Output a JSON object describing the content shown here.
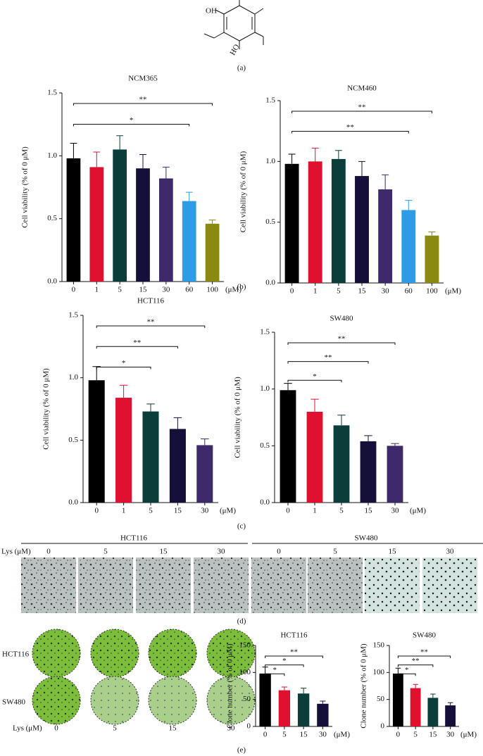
{
  "chart_data": [
    {
      "type": "bar",
      "title": "NCM365",
      "ylabel": "Cell viability (% of 0 μM)",
      "x_unit": "(μM)",
      "categories": [
        "0",
        "1",
        "5",
        "15",
        "30",
        "60",
        "100"
      ],
      "values": [
        0.98,
        0.91,
        1.05,
        0.9,
        0.82,
        0.64,
        0.46
      ],
      "errors": [
        0.12,
        0.12,
        0.11,
        0.11,
        0.09,
        0.07,
        0.03
      ],
      "colors": [
        "#000000",
        "#e0102f",
        "#0b3d3a",
        "#14103a",
        "#3e2a6b",
        "#2e9be6",
        "#8a8a12"
      ],
      "ylim": [
        0,
        1.5
      ],
      "yticks": [
        {
          "value": 0,
          "label": "0.0"
        },
        0.5,
        {
          "value": 1,
          "label": "1.0"
        },
        1.5
      ],
      "brackets": [
        {
          "label": "*",
          "from": "0",
          "to": "60"
        },
        {
          "label": "**",
          "from": "0",
          "to": "100"
        }
      ]
    },
    {
      "type": "bar",
      "title": "NCM460",
      "ylabel": "Cell viability (% of 0 μM)",
      "x_unit": "(μM)",
      "categories": [
        "0",
        "1",
        "5",
        "15",
        "30",
        "60",
        "100"
      ],
      "values": [
        0.98,
        1.0,
        1.02,
        0.88,
        0.77,
        0.6,
        0.39
      ],
      "errors": [
        0.08,
        0.11,
        0.07,
        0.12,
        0.12,
        0.08,
        0.03
      ],
      "colors": [
        "#000000",
        "#e0102f",
        "#0b3d3a",
        "#14103a",
        "#3e2a6b",
        "#2e9be6",
        "#8a8a12"
      ],
      "ylim": [
        0,
        1.5
      ],
      "yticks": [
        {
          "value": 0,
          "label": "0.0"
        },
        0.5,
        {
          "value": 1,
          "label": "1.0"
        },
        1.5
      ],
      "brackets": [
        {
          "label": "**",
          "from": "0",
          "to": "60"
        },
        {
          "label": "**",
          "from": "0",
          "to": "100"
        }
      ]
    },
    {
      "type": "bar",
      "title": "HCT116",
      "ylabel": "Cell viability (% of 0 μM)",
      "x_unit": "(μM)",
      "categories": [
        "0",
        "1",
        "5",
        "15",
        "30"
      ],
      "values": [
        0.98,
        0.84,
        0.73,
        0.59,
        0.46
      ],
      "errors": [
        0.11,
        0.1,
        0.06,
        0.09,
        0.05
      ],
      "colors": [
        "#000000",
        "#e0102f",
        "#0b3d3a",
        "#14103a",
        "#3e2a6b"
      ],
      "ylim": [
        0,
        1.5
      ],
      "yticks": [
        {
          "value": 0,
          "label": "0.0"
        },
        0.5,
        {
          "value": 1,
          "label": "1.0"
        },
        1.5
      ],
      "brackets": [
        {
          "label": "*",
          "from": "0",
          "to": "5"
        },
        {
          "label": "**",
          "from": "0",
          "to": "15"
        },
        {
          "label": "**",
          "from": "0",
          "to": "30"
        }
      ]
    },
    {
      "type": "bar",
      "title": "SW480",
      "ylabel": "Cell viability (% of 0 μM)",
      "x_unit": "(μM)",
      "categories": [
        "0",
        "1",
        "5",
        "15",
        "30"
      ],
      "values": [
        0.99,
        0.8,
        0.68,
        0.54,
        0.5
      ],
      "errors": [
        0.06,
        0.11,
        0.09,
        0.05,
        0.02
      ],
      "colors": [
        "#000000",
        "#e0102f",
        "#0b3d3a",
        "#14103a",
        "#3e2a6b"
      ],
      "ylim": [
        0,
        1.5
      ],
      "yticks": [
        {
          "value": 0,
          "label": "0.0"
        },
        0.5,
        {
          "value": 1,
          "label": "1.0"
        },
        1.5
      ],
      "brackets": [
        {
          "label": "*",
          "from": "0",
          "to": "5"
        },
        {
          "label": "**",
          "from": "0",
          "to": "15"
        },
        {
          "label": "**",
          "from": "0",
          "to": "30"
        }
      ]
    },
    {
      "type": "bar",
      "title": "HCT116",
      "ylabel": "Clone number (% of 0 μM)",
      "x_unit": "(μM)",
      "categories": [
        "0",
        "5",
        "15",
        "30"
      ],
      "values": [
        98,
        67,
        61,
        42
      ],
      "errors": [
        12,
        6,
        10,
        5
      ],
      "colors": [
        "#000000",
        "#e0102f",
        "#0b3d3a",
        "#14103a"
      ],
      "ylim": [
        0,
        150
      ],
      "yticks": [
        0,
        50,
        100,
        150
      ],
      "brackets": [
        {
          "label": "*",
          "from": "0",
          "to": "5"
        },
        {
          "label": "*",
          "from": "0",
          "to": "15"
        },
        {
          "label": "**",
          "from": "0",
          "to": "30"
        }
      ]
    },
    {
      "type": "bar",
      "title": "SW480",
      "ylabel": "Clone number (% of 0 μM)",
      "x_unit": "(μM)",
      "categories": [
        "0",
        "5",
        "15",
        "30"
      ],
      "values": [
        98,
        71,
        53,
        39
      ],
      "errors": [
        10,
        7,
        7,
        5
      ],
      "colors": [
        "#000000",
        "#e0102f",
        "#0b3d3a",
        "#14103a"
      ],
      "ylim": [
        0,
        150
      ],
      "yticks": [
        0,
        50,
        100,
        150
      ],
      "brackets": [
        {
          "label": "*",
          "from": "0",
          "to": "5"
        },
        {
          "label": "**",
          "from": "0",
          "to": "15"
        },
        {
          "label": "**",
          "from": "0",
          "to": "30"
        }
      ]
    }
  ],
  "figure": {
    "panel_labels": [
      "(a)",
      "(b)",
      "(c)",
      "(d)",
      "(e)"
    ],
    "structure": [
      "OH",
      "HO"
    ],
    "invasion": {
      "dose_label": "Lys (μM)",
      "groups": [
        "HCT116",
        "SW480"
      ],
      "doses": [
        "0",
        "5",
        "15",
        "30",
        "0",
        "5",
        "15",
        "30"
      ]
    },
    "colony": {
      "rows": [
        "HCT116",
        "SW480"
      ],
      "dose_label": "Lys (μM)",
      "doses": [
        "0",
        "5",
        "15",
        "30"
      ]
    }
  }
}
